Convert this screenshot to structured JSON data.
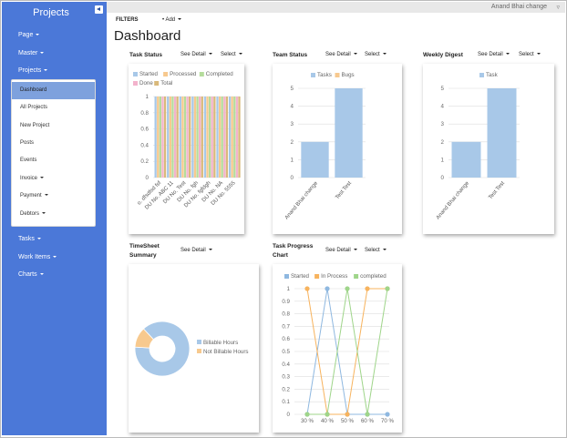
{
  "sidebar": {
    "brand": "Projects",
    "items": [
      {
        "label": "Page"
      },
      {
        "label": "Master"
      },
      {
        "label": "Projects"
      },
      {
        "label": "Tasks"
      },
      {
        "label": "Work Items"
      },
      {
        "label": "Charts"
      }
    ],
    "submenu": [
      {
        "label": "Dashboard"
      },
      {
        "label": "All Projects"
      },
      {
        "label": "New Project"
      },
      {
        "label": "Posts"
      },
      {
        "label": "Events"
      },
      {
        "label": "Invoice"
      },
      {
        "label": "Payment"
      },
      {
        "label": "Debtors"
      }
    ]
  },
  "topbar": {
    "user": "Anand Bhai change"
  },
  "toolbar": {
    "filters": "FILTERS",
    "add": "Add"
  },
  "page_title": "Dashboard",
  "menus": {
    "see_detail": "See Detail",
    "select": "Select"
  },
  "widgets": {
    "task_status": "Task Status",
    "team_status": "Team Status",
    "weekly_digest": "Weekly Digest",
    "timesheet_line1": "TimeSheet",
    "timesheet_line2": "Summary",
    "task_progress_line1": "Task Progress",
    "task_progress_line2": "Chart"
  },
  "chart_data": [
    {
      "type": "bar",
      "title": "Task Status",
      "legend": [
        "Started",
        "Processed",
        "Completed",
        "Done",
        "Total"
      ],
      "colors": [
        "#a8c8e8",
        "#f7c98e",
        "#b5dc9c",
        "#f3b3cc",
        "#d9b97a"
      ],
      "categories": [
        "o. dfsdfsd fsf",
        "DU No. ABC 11",
        "DU No. Test",
        "DU No. fgh",
        "DU No. fgfdgh",
        "DU No. NA",
        "DU No. 5555"
      ],
      "series": [
        {
          "name": "Started",
          "values": [
            1,
            1,
            1,
            1,
            1,
            1,
            1
          ]
        },
        {
          "name": "Processed",
          "values": [
            1,
            1,
            1,
            1,
            1,
            1,
            1
          ]
        },
        {
          "name": "Completed",
          "values": [
            1,
            1,
            1,
            1,
            1,
            1,
            1
          ]
        },
        {
          "name": "Done",
          "values": [
            1,
            1,
            1,
            1,
            1,
            1,
            1
          ]
        },
        {
          "name": "Total",
          "values": [
            1,
            1,
            1,
            1,
            1,
            1,
            1
          ]
        }
      ],
      "yticks": [
        "0",
        "0.2",
        "0.4",
        "0.6",
        "0.8",
        "1"
      ],
      "ylim": [
        0,
        1
      ]
    },
    {
      "type": "bar",
      "title": "Team Status",
      "legend": [
        "Tasks",
        "Bugs"
      ],
      "colors": [
        "#a8c8e8",
        "#f7c98e"
      ],
      "categories": [
        "Anand Bhai change",
        "Test Test"
      ],
      "series": [
        {
          "name": "Tasks",
          "values": [
            2,
            5
          ]
        },
        {
          "name": "Bugs",
          "values": [
            0,
            0
          ]
        }
      ],
      "yticks": [
        "0",
        "1",
        "2",
        "3",
        "4",
        "5"
      ],
      "ylim": [
        0,
        5
      ]
    },
    {
      "type": "bar",
      "title": "Weekly Digest",
      "legend": [
        "Task"
      ],
      "colors": [
        "#a8c8e8"
      ],
      "categories": [
        "Anand Bhai change",
        "Test Test"
      ],
      "series": [
        {
          "name": "Task",
          "values": [
            2,
            5
          ]
        }
      ],
      "yticks": [
        "0",
        "1",
        "2",
        "3",
        "4",
        "5"
      ],
      "ylim": [
        0,
        5
      ]
    },
    {
      "type": "pie",
      "title": "TimeSheet Summary",
      "legend": [
        "Billable Hours",
        "Not Billable Hours"
      ],
      "colors": [
        "#a8c8e8",
        "#f7c98e"
      ],
      "values": [
        88,
        12
      ]
    },
    {
      "type": "line",
      "title": "Task Progress Chart",
      "legend": [
        "Started",
        "In Process",
        "completed"
      ],
      "colors": [
        "#8fb8e0",
        "#f7b35e",
        "#9fd58a"
      ],
      "categories": [
        "30 %",
        "40 %",
        "50 %",
        "60 %",
        "70 %"
      ],
      "series": [
        {
          "name": "Started",
          "values": [
            0,
            1,
            0,
            0,
            0
          ]
        },
        {
          "name": "In Process",
          "values": [
            1,
            0,
            0,
            1,
            1
          ]
        },
        {
          "name": "completed",
          "values": [
            0,
            0,
            1,
            0,
            1
          ]
        }
      ],
      "yticks": [
        "0",
        "0.1",
        "0.2",
        "0.3",
        "0.4",
        "0.5",
        "0.6",
        "0.7",
        "0.8",
        "0.9",
        "1"
      ],
      "ylim": [
        0,
        1
      ]
    }
  ]
}
